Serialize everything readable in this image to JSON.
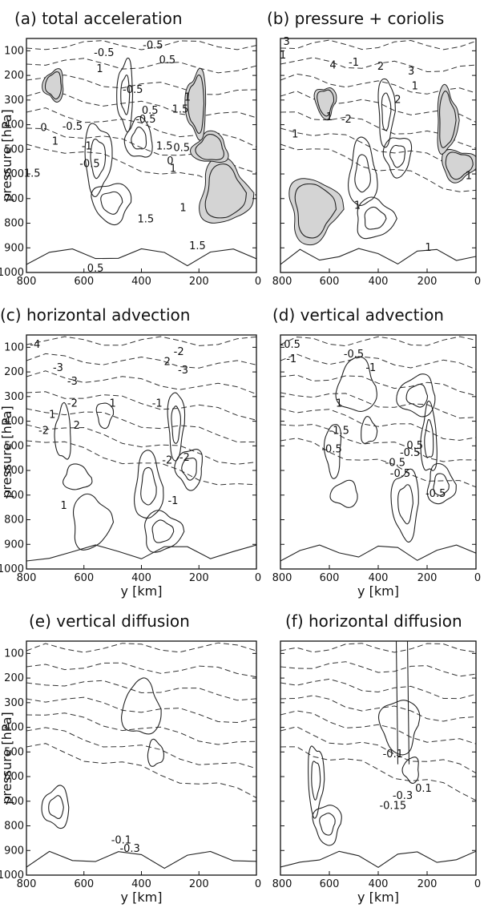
{
  "chart_data": [
    {
      "type": "contour",
      "panel": "a",
      "title": "(a) total acceleration",
      "ylabel": "pressure [hPa]",
      "xlabel": "",
      "xlim": [
        800,
        0
      ],
      "ylim": [
        1000,
        50
      ],
      "x_ticks": [
        "800",
        "600",
        "400",
        "200",
        "0"
      ],
      "y_ticks": [
        "100",
        "200",
        "300",
        "400",
        "500",
        "600",
        "700",
        "800",
        "900",
        "1000"
      ],
      "contour_labels": [
        {
          "text": "-0.5",
          "x": 530,
          "y": 110
        },
        {
          "text": "-0.5",
          "x": 360,
          "y": 80
        },
        {
          "text": "0.5",
          "x": 310,
          "y": 140
        },
        {
          "text": "1",
          "x": 545,
          "y": 175
        },
        {
          "text": "-0.5",
          "x": 430,
          "y": 260
        },
        {
          "text": "1",
          "x": 240,
          "y": 290
        },
        {
          "text": "1.5",
          "x": 265,
          "y": 340
        },
        {
          "text": "0.5",
          "x": 370,
          "y": 345
        },
        {
          "text": "-0.5",
          "x": 385,
          "y": 380
        },
        {
          "text": "-0.5",
          "x": 640,
          "y": 410
        },
        {
          "text": "0",
          "x": 740,
          "y": 415
        },
        {
          "text": "1",
          "x": 700,
          "y": 470
        },
        {
          "text": "-1",
          "x": 590,
          "y": 490
        },
        {
          "text": "1.5",
          "x": 320,
          "y": 490
        },
        {
          "text": "0.5",
          "x": 260,
          "y": 495
        },
        {
          "text": "0",
          "x": 300,
          "y": 550
        },
        {
          "text": "1",
          "x": 290,
          "y": 580
        },
        {
          "text": "-0.5",
          "x": 580,
          "y": 560
        },
        {
          "text": "1.5",
          "x": 780,
          "y": 600
        },
        {
          "text": "1",
          "x": 255,
          "y": 740
        },
        {
          "text": "1.5",
          "x": 385,
          "y": 785
        },
        {
          "text": "1.5",
          "x": 205,
          "y": 895
        },
        {
          "text": "0.5",
          "x": 560,
          "y": 985
        }
      ]
    },
    {
      "type": "contour",
      "panel": "b",
      "title": "(b) pressure + coriolis",
      "ylabel": "",
      "xlabel": "",
      "xlim": [
        800,
        0
      ],
      "ylim": [
        1000,
        50
      ],
      "x_ticks": [
        "800",
        "600",
        "400",
        "200",
        "0"
      ],
      "y_ticks": [],
      "contour_labels": [
        {
          "text": "3",
          "x": 775,
          "y": 65
        },
        {
          "text": "1",
          "x": 790,
          "y": 120
        },
        {
          "text": "4",
          "x": 585,
          "y": 160
        },
        {
          "text": "2",
          "x": 390,
          "y": 165
        },
        {
          "text": "-1",
          "x": 500,
          "y": 150
        },
        {
          "text": "3",
          "x": 265,
          "y": 185
        },
        {
          "text": "1",
          "x": 250,
          "y": 245
        },
        {
          "text": "2",
          "x": 320,
          "y": 300
        },
        {
          "text": "1",
          "x": 600,
          "y": 370
        },
        {
          "text": "-2",
          "x": 530,
          "y": 380
        },
        {
          "text": "1",
          "x": 740,
          "y": 440
        },
        {
          "text": "1",
          "x": 30,
          "y": 610
        },
        {
          "text": "1",
          "x": 485,
          "y": 730
        },
        {
          "text": "1",
          "x": 195,
          "y": 900
        }
      ]
    },
    {
      "type": "contour",
      "panel": "c",
      "title": "(c) horizontal advection",
      "ylabel": "pressure [hPa]",
      "xlabel": "y [km]",
      "xlim": [
        800,
        0
      ],
      "ylim": [
        1000,
        50
      ],
      "x_ticks": [
        "800",
        "600",
        "400",
        "200",
        "0"
      ],
      "y_ticks": [
        "100",
        "200",
        "300",
        "400",
        "500",
        "600",
        "700",
        "800",
        "900",
        "1000"
      ],
      "contour_labels": [
        {
          "text": "-4",
          "x": 770,
          "y": 90
        },
        {
          "text": "-3",
          "x": 690,
          "y": 185
        },
        {
          "text": "-3",
          "x": 640,
          "y": 240
        },
        {
          "text": "-2",
          "x": 270,
          "y": 120
        },
        {
          "text": "2",
          "x": 310,
          "y": 160
        },
        {
          "text": "-3",
          "x": 255,
          "y": 195
        },
        {
          "text": "-2",
          "x": 640,
          "y": 330
        },
        {
          "text": "1",
          "x": 500,
          "y": 330
        },
        {
          "text": "-1",
          "x": 345,
          "y": 330
        },
        {
          "text": "1",
          "x": 710,
          "y": 375
        },
        {
          "text": "2",
          "x": 625,
          "y": 420
        },
        {
          "text": "-2",
          "x": 740,
          "y": 440
        },
        {
          "text": "-2",
          "x": 310,
          "y": 560
        },
        {
          "text": "-2",
          "x": 250,
          "y": 550
        },
        {
          "text": "-1",
          "x": 290,
          "y": 725
        },
        {
          "text": "1",
          "x": 670,
          "y": 745
        }
      ]
    },
    {
      "type": "contour",
      "panel": "d",
      "title": "(d) vertical advection",
      "ylabel": "",
      "xlabel": "y [km]",
      "xlim": [
        800,
        0
      ],
      "ylim": [
        1000,
        50
      ],
      "x_ticks": [
        "800",
        "600",
        "400",
        "200",
        "0"
      ],
      "y_ticks": [],
      "contour_labels": [
        {
          "text": "-0.5",
          "x": 760,
          "y": 90
        },
        {
          "text": "-1",
          "x": 755,
          "y": 150
        },
        {
          "text": "-0.5",
          "x": 500,
          "y": 130
        },
        {
          "text": "-1",
          "x": 430,
          "y": 185
        },
        {
          "text": "1",
          "x": 560,
          "y": 330
        },
        {
          "text": "-1.5",
          "x": 560,
          "y": 440
        },
        {
          "text": "-0.5",
          "x": 590,
          "y": 515
        },
        {
          "text": "-0.5",
          "x": 270,
          "y": 530
        },
        {
          "text": "0.5",
          "x": 250,
          "y": 500
        },
        {
          "text": "-0.5",
          "x": 330,
          "y": 570
        },
        {
          "text": "-0.5",
          "x": 310,
          "y": 615
        },
        {
          "text": "-0.5",
          "x": 165,
          "y": 695
        }
      ]
    },
    {
      "type": "contour",
      "panel": "e",
      "title": "(e) vertical diffusion",
      "ylabel": "pressure [hPa]",
      "xlabel": "y [km]",
      "xlim": [
        800,
        0
      ],
      "ylim": [
        1000,
        50
      ],
      "x_ticks": [
        "800",
        "600",
        "400",
        "200",
        "0"
      ],
      "y_ticks": [
        "100",
        "200",
        "300",
        "400",
        "500",
        "600",
        "700",
        "800",
        "900",
        "1000"
      ],
      "contour_labels": [
        {
          "text": "-0.1",
          "x": 470,
          "y": 860
        },
        {
          "text": "-0.3",
          "x": 440,
          "y": 895
        }
      ]
    },
    {
      "type": "contour",
      "panel": "f",
      "title": "(f) horizontal diffusion",
      "ylabel": "",
      "xlabel": "y [km]",
      "xlim": [
        800,
        0
      ],
      "ylim": [
        1000,
        50
      ],
      "x_ticks": [
        "800",
        "600",
        "400",
        "200",
        "0"
      ],
      "y_ticks": [],
      "contour_labels": [
        {
          "text": "-0.1",
          "x": 340,
          "y": 510
        },
        {
          "text": "0.1",
          "x": 215,
          "y": 650
        },
        {
          "text": "-0.3",
          "x": 300,
          "y": 680
        },
        {
          "text": "-0.15",
          "x": 340,
          "y": 720
        }
      ]
    }
  ]
}
